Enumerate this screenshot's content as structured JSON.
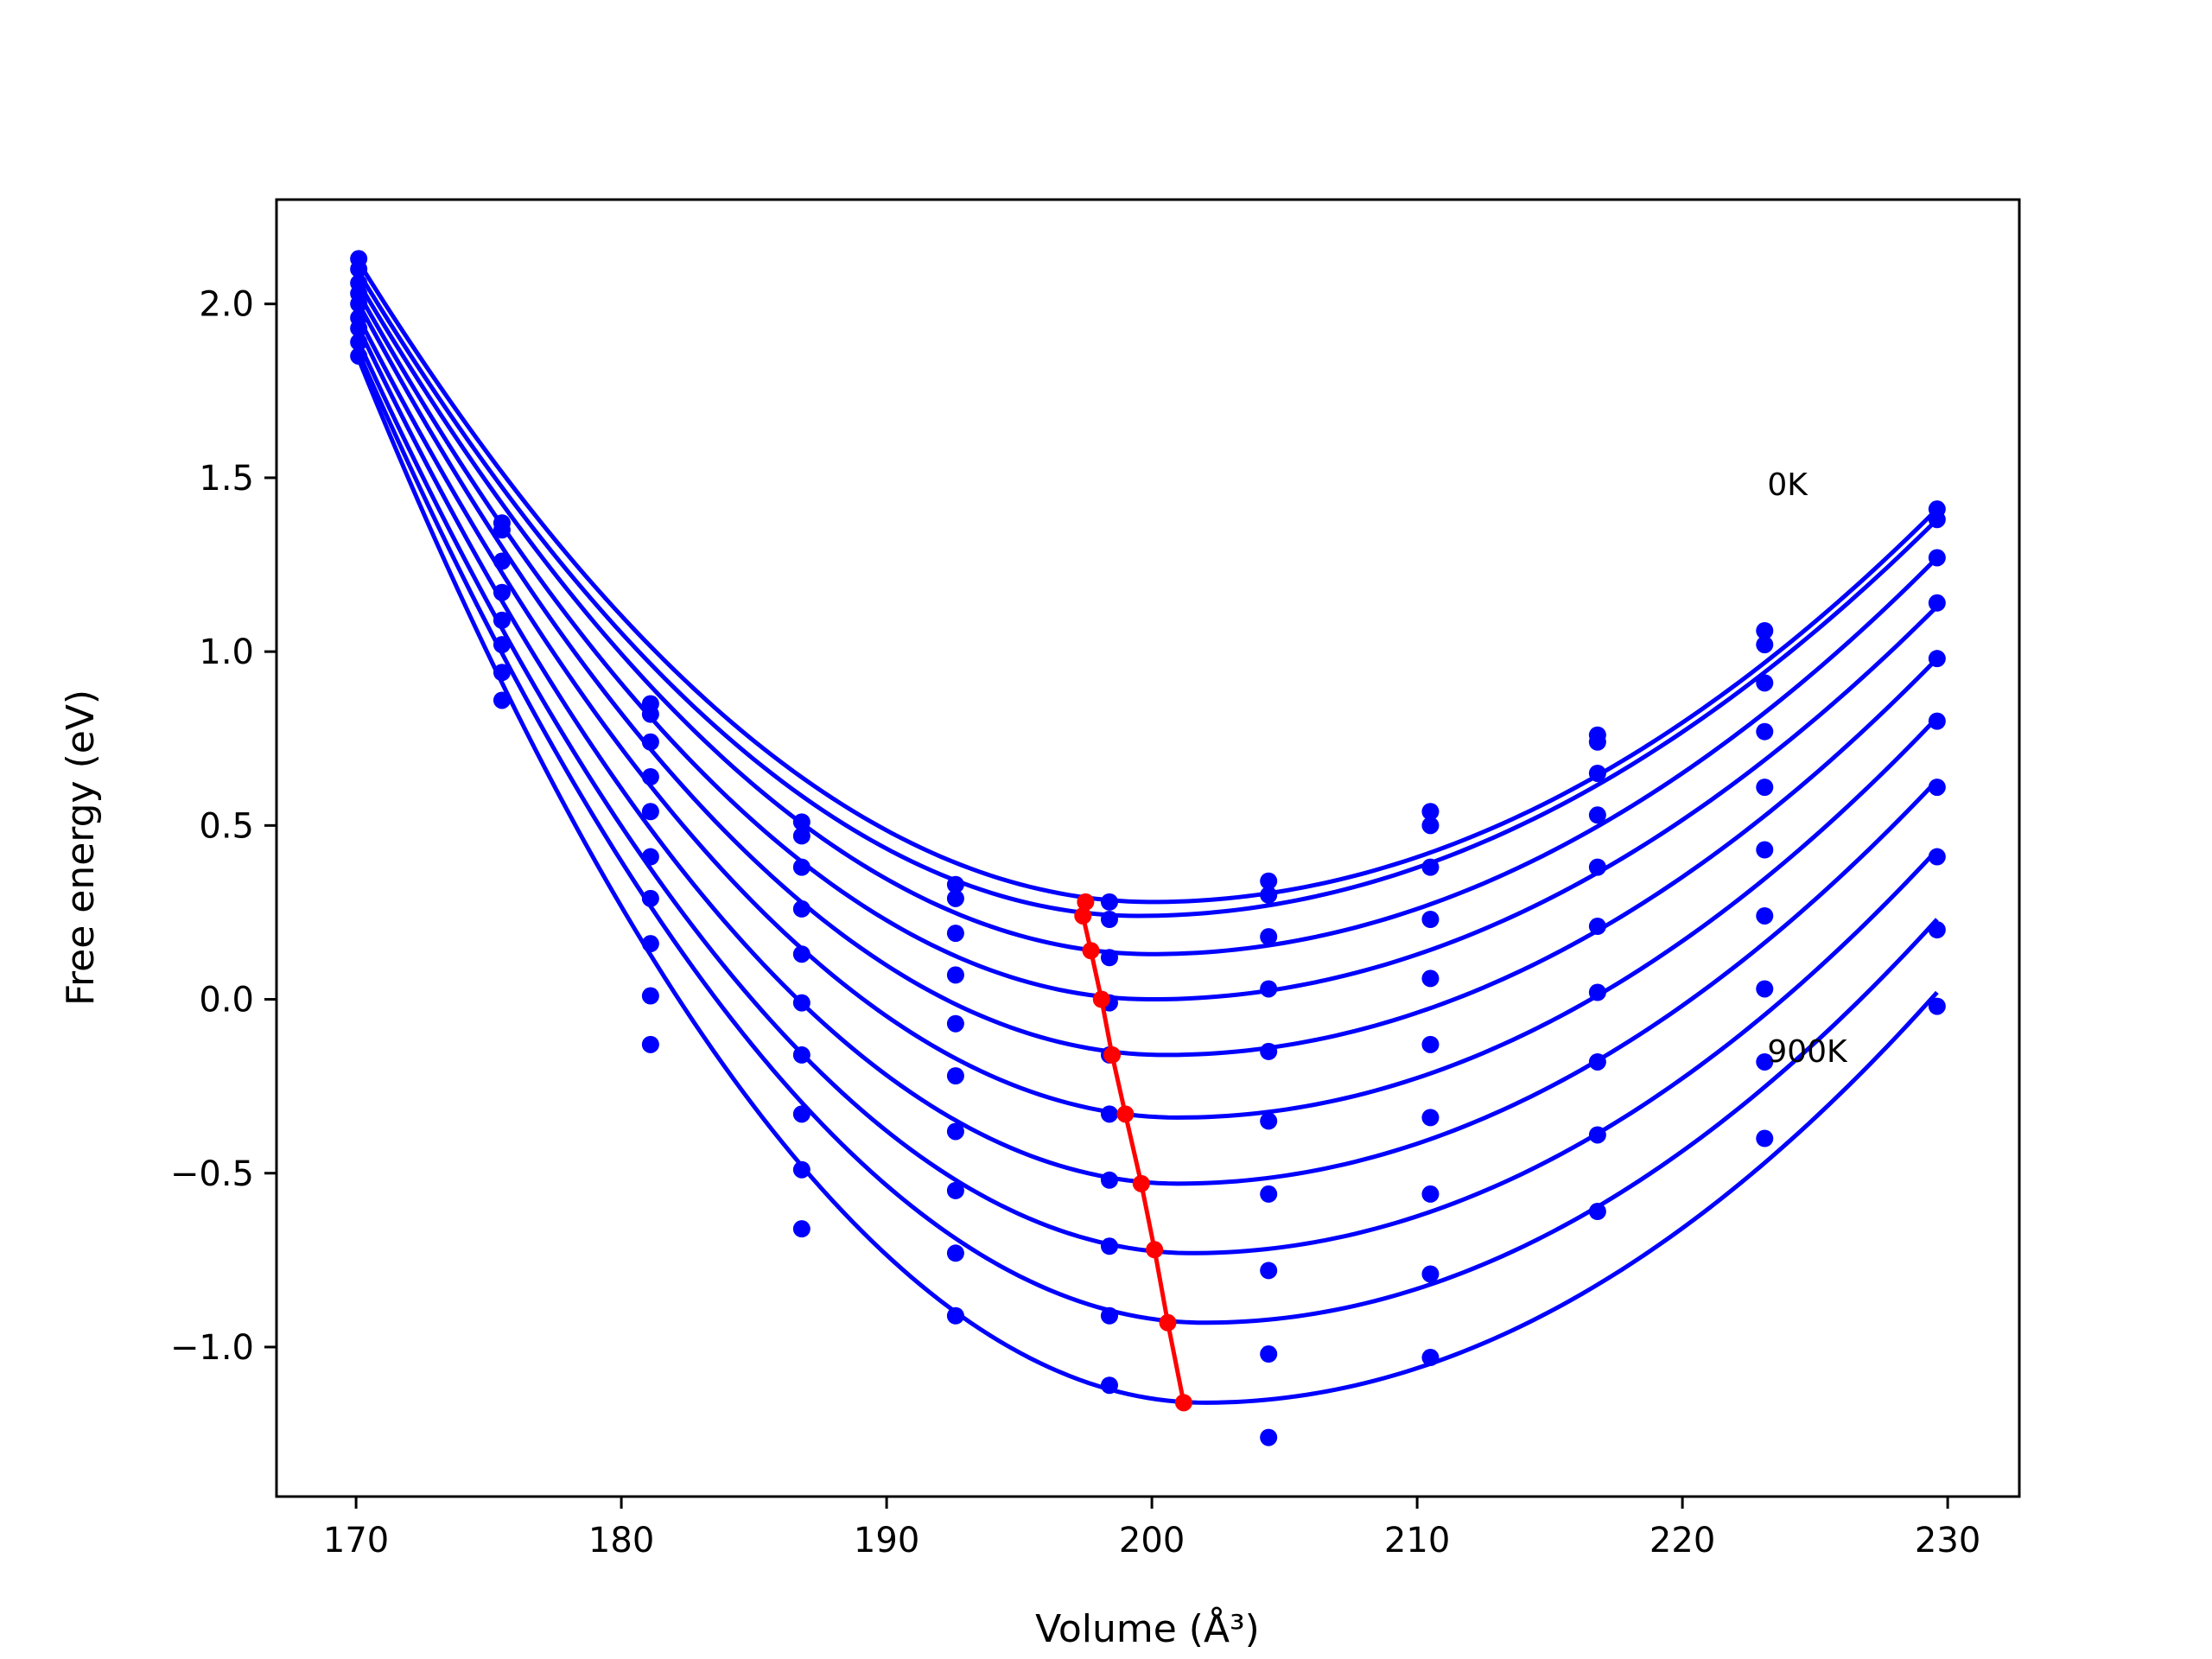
{
  "chart_data": {
    "type": "line",
    "xlabel": "Volume (Å³)",
    "ylabel": "Free energy (eV)",
    "xlim": [
      167,
      232.7
    ],
    "ylim": [
      -1.43,
      2.3
    ],
    "xticks": [
      170,
      180,
      190,
      200,
      210,
      220,
      230
    ],
    "xtick_labels": [
      "170",
      "180",
      "190",
      "200",
      "210",
      "220",
      "230"
    ],
    "yticks": [
      -1.0,
      -0.5,
      0.0,
      0.5,
      1.0,
      1.5,
      2.0
    ],
    "ytick_labels": [
      "−1.0",
      "−0.5",
      "0.0",
      "0.5",
      "1.0",
      "1.5",
      "2.0"
    ],
    "grid": false,
    "volumes": [
      170.1,
      175.5,
      181.1,
      186.8,
      192.6,
      198.4,
      204.4,
      210.5,
      216.8,
      223.1,
      229.6
    ],
    "series_color": "#0000ff",
    "fit_color": "#ff0000",
    "series": [
      {
        "points": [
          2.13,
          1.37,
          0.85,
          0.51,
          0.33,
          0.28,
          0.34,
          0.54,
          0.76,
          1.06,
          1.41
        ],
        "fit_min": [
          200.0,
          0.28
        ],
        "fit_ends": [
          2.12,
          1.41
        ]
      },
      {
        "points": [
          2.1,
          1.35,
          0.82,
          0.47,
          0.29,
          0.23,
          0.3,
          0.5,
          0.74,
          1.02,
          1.38
        ],
        "fit_min": [
          199.5,
          0.24
        ],
        "fit_ends": [
          2.09,
          1.38
        ]
      },
      {
        "points": [
          2.06,
          1.26,
          0.74,
          0.38,
          0.19,
          0.12,
          0.18,
          0.38,
          0.65,
          0.91,
          1.27
        ],
        "fit_min": [
          200.0,
          0.13
        ],
        "fit_ends": [
          2.06,
          1.27
        ]
      },
      {
        "points": [
          2.03,
          1.17,
          0.64,
          0.26,
          0.07,
          -0.01,
          0.03,
          0.23,
          0.53,
          0.77,
          1.14
        ],
        "fit_min": [
          200.0,
          -0.0
        ],
        "fit_ends": [
          2.03,
          1.13
        ]
      },
      {
        "points": [
          2.0,
          1.09,
          0.54,
          0.13,
          -0.07,
          -0.16,
          -0.15,
          0.06,
          0.38,
          0.61,
          0.98
        ],
        "fit_min": [
          200.5,
          -0.16
        ],
        "fit_ends": [
          2.0,
          0.98
        ]
      },
      {
        "points": [
          1.96,
          1.02,
          0.41,
          -0.01,
          -0.22,
          -0.33,
          -0.35,
          -0.13,
          0.21,
          0.43,
          0.8
        ],
        "fit_min": [
          201.0,
          -0.34
        ],
        "fit_ends": [
          1.96,
          0.81
        ]
      },
      {
        "points": [
          1.93,
          0.94,
          0.29,
          -0.16,
          -0.38,
          -0.52,
          -0.56,
          -0.34,
          0.02,
          0.24,
          0.61
        ],
        "fit_min": [
          201.0,
          -0.53
        ],
        "fit_ends": [
          1.93,
          0.63
        ]
      },
      {
        "points": [
          1.89,
          0.86,
          0.16,
          -0.33,
          -0.55,
          -0.71,
          -0.78,
          -0.56,
          -0.18,
          0.03,
          0.41
        ],
        "fit_min": [
          201.5,
          -0.73
        ],
        "fit_ends": [
          1.89,
          0.43
        ]
      },
      {
        "points": [
          1.85,
          null,
          0.01,
          -0.49,
          -0.73,
          -0.91,
          -1.02,
          -0.79,
          -0.39,
          -0.18,
          0.2
        ],
        "fit_min": [
          202.0,
          -0.93
        ],
        "fit_ends": [
          1.86,
          0.23
        ]
      },
      {
        "points": [
          null,
          null,
          -0.13,
          -0.66,
          -0.91,
          -1.11,
          -1.26,
          -1.03,
          -0.61,
          -0.4,
          -0.02
        ],
        "fit_min": [
          202.0,
          -1.16
        ],
        "fit_ends": [
          1.84,
          0.02
        ]
      }
    ],
    "minima_path": {
      "x": [
        197.5,
        197.4,
        197.7,
        198.1,
        198.5,
        199.0,
        199.6,
        200.1,
        200.6,
        201.2
      ],
      "y": [
        0.28,
        0.24,
        0.14,
        0.0,
        -0.16,
        -0.33,
        -0.53,
        -0.72,
        -0.93,
        -1.16
      ]
    },
    "annotations": [
      {
        "text": "0K",
        "x": 223.2,
        "y": 1.48
      },
      {
        "text": "900K",
        "x": 223.2,
        "y": -0.15
      }
    ]
  }
}
